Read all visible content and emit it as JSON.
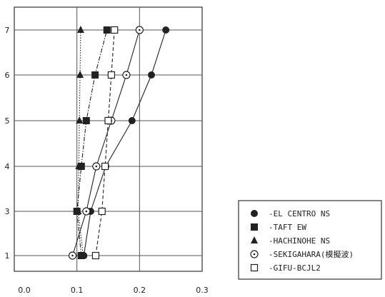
{
  "chart_data": {
    "type": "line",
    "orientation": "horizontal",
    "xlim": [
      0.0,
      0.3
    ],
    "x_ticks": [
      "0.0",
      "0.1",
      "0.2",
      "0.3"
    ],
    "y_ticks": [
      "1",
      "3",
      "4",
      "5",
      "6",
      "7"
    ],
    "y_levels": [
      1,
      3,
      4,
      5,
      6,
      7
    ],
    "grid": true,
    "legend_placement": "bottom-right outside",
    "series": [
      {
        "name": "EL CENTRO NS",
        "marker": "filled-circle",
        "line": "solid",
        "color": "#222222",
        "values": [
          0.111,
          0.122,
          0.146,
          0.188,
          0.219,
          0.242
        ]
      },
      {
        "name": "TAFT EW",
        "marker": "filled-square",
        "line": "dash-dot",
        "color": "#222222",
        "values": [
          0.107,
          0.1,
          0.107,
          0.115,
          0.129,
          0.148
        ]
      },
      {
        "name": "HACHINOHE NS",
        "marker": "filled-triangle",
        "line": "dotted",
        "color": "#222222",
        "values": [
          0.11,
          0.102,
          0.103,
          0.104,
          0.105,
          0.106
        ]
      },
      {
        "name": "SEKIGAHARA(模擬波)",
        "marker": "open-circle",
        "line": "solid",
        "color": "#222222",
        "values": [
          0.093,
          0.115,
          0.131,
          0.155,
          0.179,
          0.2
        ]
      },
      {
        "name": "GIFU-BCJL2",
        "marker": "open-square",
        "line": "dashed",
        "color": "#222222",
        "values": [
          0.13,
          0.14,
          0.145,
          0.15,
          0.155,
          0.16
        ]
      }
    ]
  }
}
